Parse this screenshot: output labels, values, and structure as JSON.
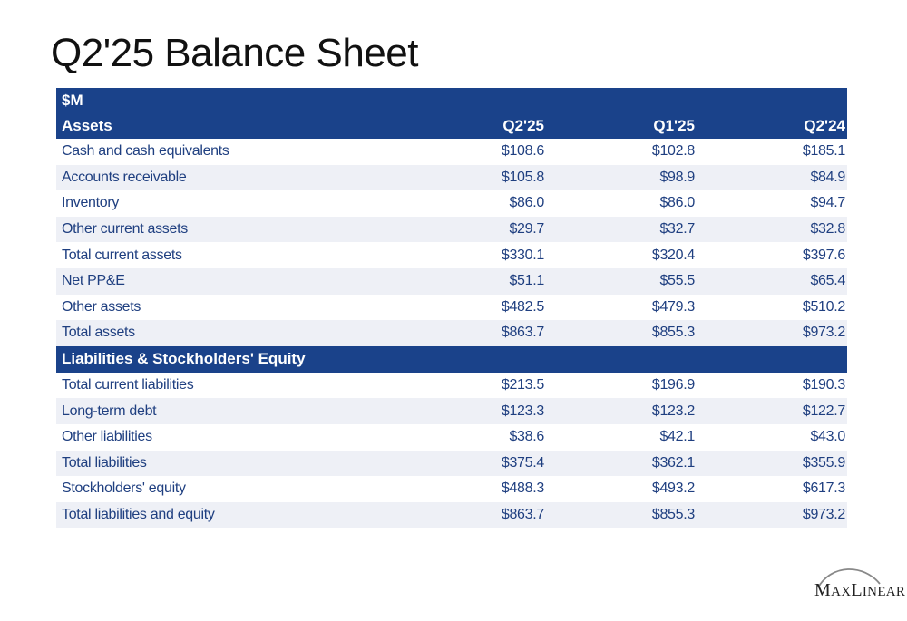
{
  "title": "Q2'25 Balance Sheet",
  "header": {
    "unit": "$M",
    "section": "Assets",
    "columns": [
      "Q2'25",
      "Q1'25",
      "Q2'24"
    ]
  },
  "assets": [
    {
      "label": "Cash and cash equivalents",
      "values": [
        "$108.6",
        "$102.8",
        "$185.1"
      ]
    },
    {
      "label": "Accounts receivable",
      "values": [
        "$105.8",
        "$98.9",
        "$84.9"
      ]
    },
    {
      "label": "Inventory",
      "values": [
        "$86.0",
        "$86.0",
        "$94.7"
      ]
    },
    {
      "label": "Other current assets",
      "values": [
        "$29.7",
        "$32.7",
        "$32.8"
      ]
    },
    {
      "label": "Total current assets",
      "values": [
        "$330.1",
        "$320.4",
        "$397.6"
      ]
    },
    {
      "label": "Net PP&E",
      "values": [
        "$51.1",
        "$55.5",
        "$65.4"
      ]
    },
    {
      "label": "Other assets",
      "values": [
        "$482.5",
        "$479.3",
        "$510.2"
      ]
    },
    {
      "label": "Total assets",
      "values": [
        "$863.7",
        "$855.3",
        "$973.2"
      ]
    }
  ],
  "liabilities_section": "Liabilities & Stockholders' Equity",
  "liabilities": [
    {
      "label": "Total current liabilities",
      "values": [
        "$213.5",
        "$196.9",
        "$190.3"
      ]
    },
    {
      "label": "Long-term debt",
      "values": [
        "$123.3",
        "$123.2",
        "$122.7"
      ]
    },
    {
      "label": "Other liabilities",
      "values": [
        "$38.6",
        "$42.1",
        "$43.0"
      ]
    },
    {
      "label": "Total liabilities",
      "values": [
        "$375.4",
        "$362.1",
        "$355.9"
      ]
    },
    {
      "label": "Stockholders' equity",
      "values": [
        "$488.3",
        "$493.2",
        "$617.3"
      ]
    },
    {
      "label": "Total liabilities and equity",
      "values": [
        "$863.7",
        "$855.3",
        "$973.2"
      ]
    }
  ],
  "logo": {
    "first": "M",
    "first_rest": "AX",
    "second": "L",
    "second_rest": "INEAR"
  }
}
